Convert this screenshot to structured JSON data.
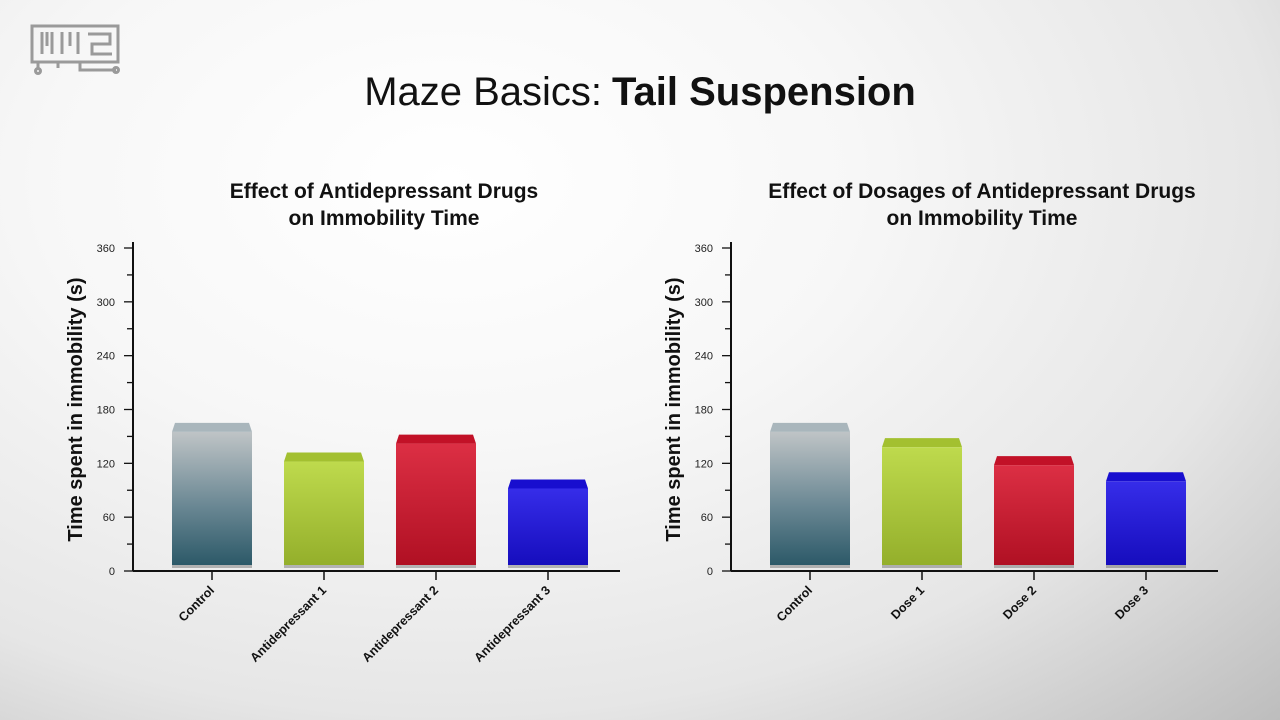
{
  "header": {
    "title_light": "Maze Basics:",
    "title_bold": "Tail Suspension"
  },
  "colors": {
    "control": "#4d6f7c",
    "antidepressant_1": "#b5d535",
    "antidepressant_2": "#d7132b",
    "antidepressant_3": "#1b10e6"
  },
  "chart_data": [
    {
      "type": "bar",
      "title_line1": "Effect of Antidepressant Drugs",
      "title_line2": "on Immobility Time",
      "ylabel": "Time spent in immobility (s)",
      "xlabel": "",
      "categories": [
        "Control",
        "Antidepressant 1",
        "Antidepressant 2",
        "Antidepressant 3"
      ],
      "values": [
        155,
        122,
        142,
        92
      ],
      "colors": [
        "#4d6f7c",
        "#b5d535",
        "#d7132b",
        "#1b10e6"
      ],
      "ylim": [
        0,
        360
      ],
      "yticks": [
        "0",
        "60",
        "120",
        "180",
        "240",
        "300",
        "360"
      ],
      "grid": false,
      "legend": "none"
    },
    {
      "type": "bar",
      "title_line1": "Effect of Dosages of Antidepressant Drugs",
      "title_line2": "on Immobility Time",
      "ylabel": "Time spent in immobility (s)",
      "xlabel": "",
      "categories": [
        "Control",
        "Dose 1",
        "Dose 2",
        "Dose 3"
      ],
      "values": [
        155,
        138,
        118,
        100
      ],
      "colors": [
        "#4d6f7c",
        "#b5d535",
        "#d7132b",
        "#1b10e6"
      ],
      "ylim": [
        0,
        360
      ],
      "yticks": [
        "0",
        "60",
        "120",
        "180",
        "240",
        "300",
        "360"
      ],
      "grid": false,
      "legend": "none"
    }
  ]
}
